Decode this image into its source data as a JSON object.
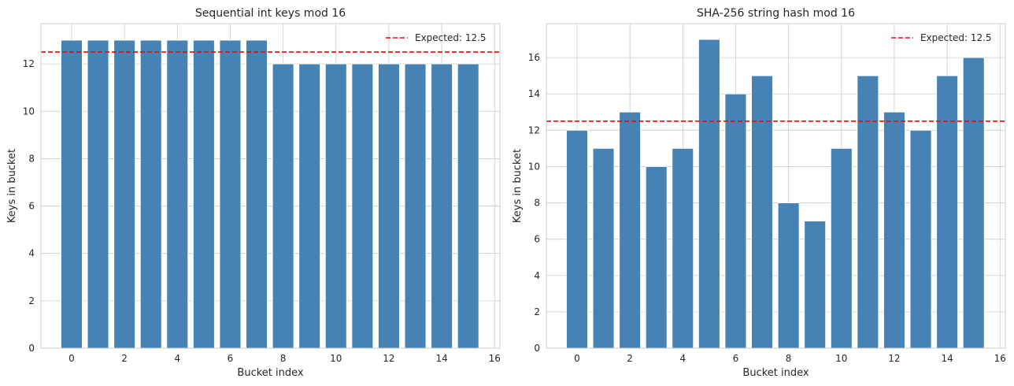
{
  "chart_data": [
    {
      "type": "bar",
      "title": "Sequential int keys mod 16",
      "xlabel": "Bucket index",
      "ylabel": "Keys in bucket",
      "categories": [
        0,
        1,
        2,
        3,
        4,
        5,
        6,
        7,
        8,
        9,
        10,
        11,
        12,
        13,
        14,
        15
      ],
      "values": [
        13,
        13,
        13,
        13,
        13,
        13,
        13,
        13,
        12,
        12,
        12,
        12,
        12,
        12,
        12,
        12
      ],
      "xticks": [
        0,
        2,
        4,
        6,
        8,
        10,
        12,
        14,
        16
      ],
      "yticks": [
        0,
        2,
        4,
        6,
        8,
        10,
        12
      ],
      "xlim": [
        -1.16,
        16.2
      ],
      "ylim": [
        0,
        13.7
      ],
      "hline": {
        "value": 12.5,
        "label": "Expected: 12.5",
        "color": "#ff0000"
      },
      "bar_color": "#4682b4",
      "grid": true,
      "legend": "top-right"
    },
    {
      "type": "bar",
      "title": "SHA-256 string hash mod 16",
      "xlabel": "Bucket index",
      "ylabel": "Keys in bucket",
      "categories": [
        0,
        1,
        2,
        3,
        4,
        5,
        6,
        7,
        8,
        9,
        10,
        11,
        12,
        13,
        14,
        15
      ],
      "values": [
        12,
        11,
        13,
        10,
        11,
        17,
        14,
        15,
        8,
        7,
        11,
        15,
        13,
        12,
        15,
        16
      ],
      "xticks": [
        0,
        2,
        4,
        6,
        8,
        10,
        12,
        14,
        16
      ],
      "yticks": [
        0,
        2,
        4,
        6,
        8,
        10,
        12,
        14,
        16
      ],
      "xlim": [
        -1.16,
        16.2
      ],
      "ylim": [
        0,
        17.87
      ],
      "hline": {
        "value": 12.5,
        "label": "Expected: 12.5",
        "color": "#ff0000"
      },
      "bar_color": "#4682b4",
      "grid": true,
      "legend": "top-right"
    }
  ]
}
